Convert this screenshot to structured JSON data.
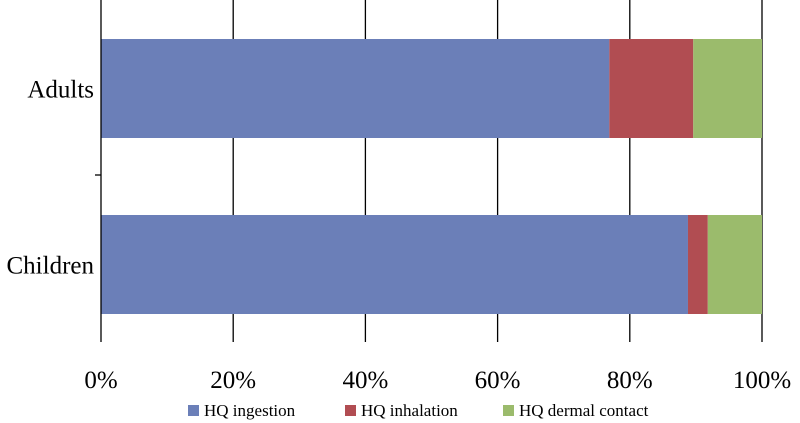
{
  "chart_data": {
    "type": "bar",
    "orientation": "horizontal",
    "stacked": "percent",
    "categories": [
      "Adults",
      "Children"
    ],
    "series": [
      {
        "name": "HQ ingestion",
        "color": "#6b7fb8",
        "values": [
          76.9,
          88.8
        ]
      },
      {
        "name": "HQ inhalation",
        "color": "#b14d52",
        "values": [
          12.7,
          3.0
        ]
      },
      {
        "name": "HQ dermal contact",
        "color": "#9bbb6c",
        "values": [
          10.4,
          8.2
        ]
      }
    ],
    "xlim": [
      0,
      100
    ],
    "xticks": [
      0,
      20,
      40,
      60,
      80,
      100
    ],
    "xtick_labels": [
      "0%",
      "20%",
      "40%",
      "60%",
      "80%",
      "100%"
    ],
    "grid": "vertical",
    "legend_position": "bottom"
  }
}
